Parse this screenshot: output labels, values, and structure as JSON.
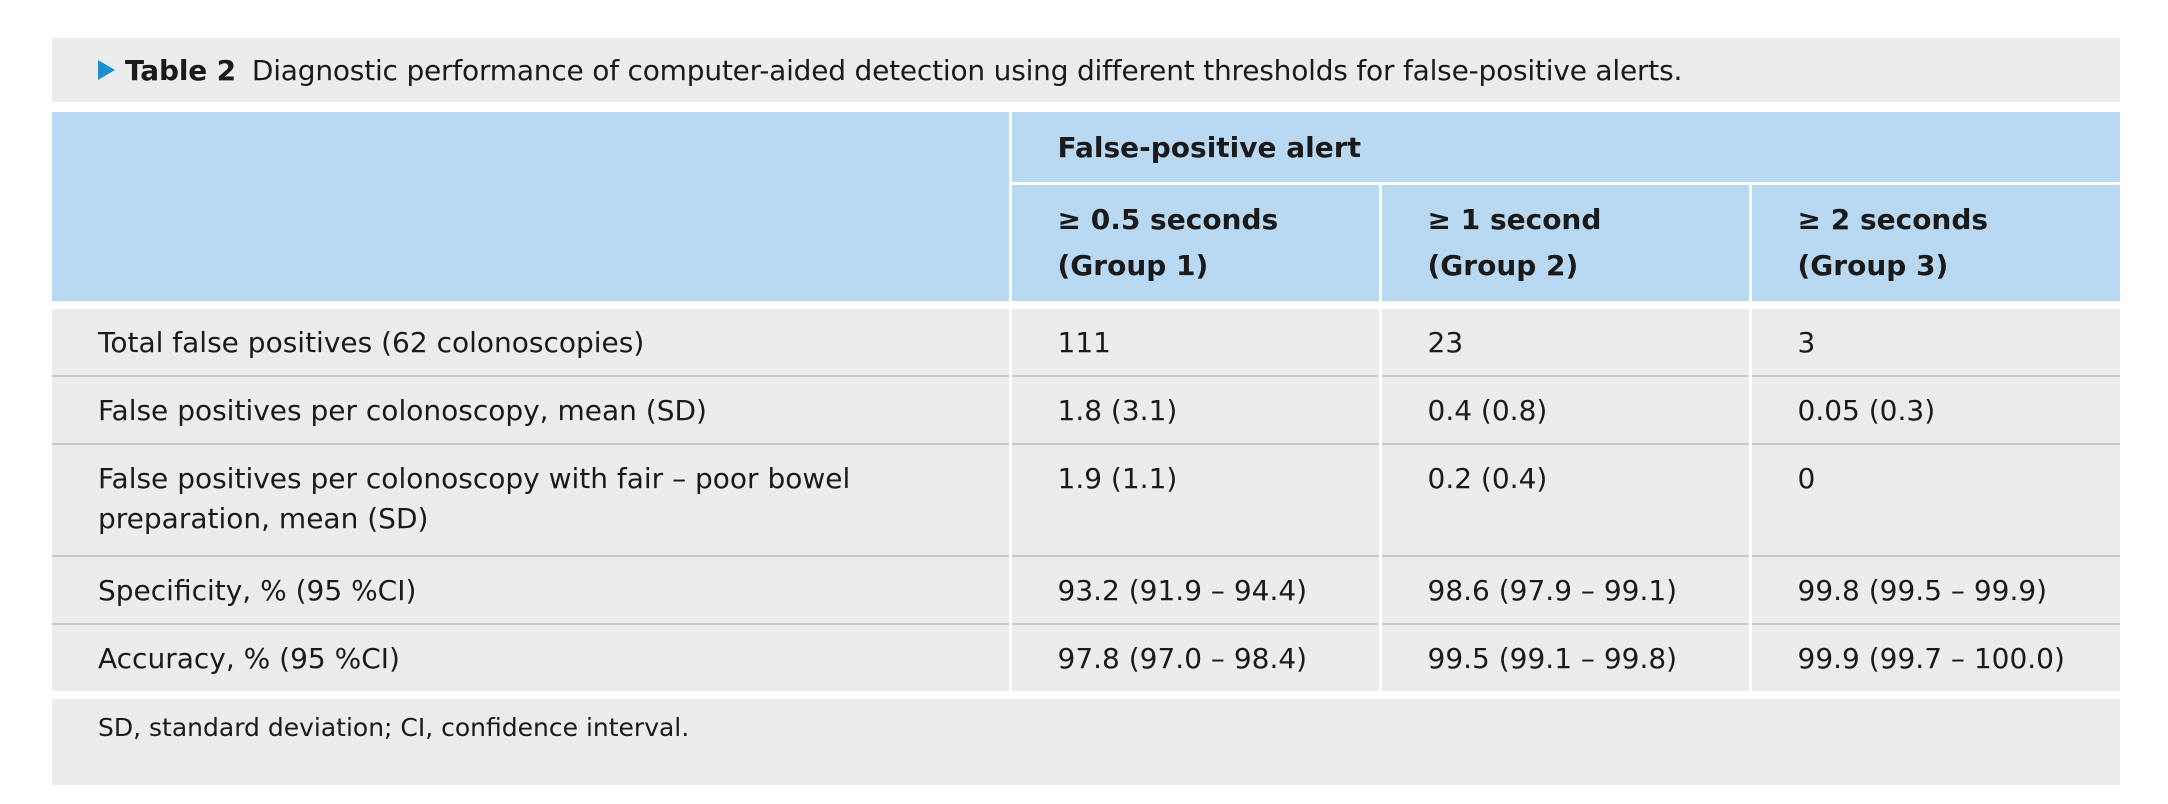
{
  "caption": {
    "label": "Table 2",
    "text": "Diagnostic performance of computer-aided detection using different thresholds for false-positive alerts."
  },
  "header": {
    "group_label": "False-positive alert",
    "columns": [
      {
        "line1": "≥ 0.5 seconds",
        "line2": "(Group 1)"
      },
      {
        "line1": "≥ 1 second",
        "line2": "(Group 2)"
      },
      {
        "line1": "≥ 2 seconds",
        "line2": "(Group 3)"
      }
    ]
  },
  "rows": [
    {
      "label": "Total false positives (62 colonoscopies)",
      "values": [
        "111",
        "23",
        "3"
      ]
    },
    {
      "label": "False positives per colonoscopy, mean (SD)",
      "values": [
        "1.8 (3.1)",
        "0.4 (0.8)",
        "0.05 (0.3)"
      ]
    },
    {
      "label": "False positives per colonoscopy with fair – poor bowel preparation, mean (SD)",
      "values": [
        "1.9 (1.1)",
        "0.2 (0.4)",
        "0"
      ]
    },
    {
      "label": "Specificity, % (95 %CI)",
      "values": [
        "93.2 (91.9 – 94.4)",
        "98.6 (97.9 – 99.1)",
        "99.8 (99.5 – 99.9)"
      ]
    },
    {
      "label": "Accuracy, % (95 %CI)",
      "values": [
        "97.8 (97.0 – 98.4)",
        "99.5 (99.1 – 99.8)",
        "99.9 (99.7 – 100.0)"
      ]
    }
  ],
  "footnote": "SD, standard deviation; CI, confidence interval.",
  "colors": {
    "accent": "#1a8fd1",
    "header_bg": "#b9d9f2",
    "body_bg": "#ececec"
  }
}
